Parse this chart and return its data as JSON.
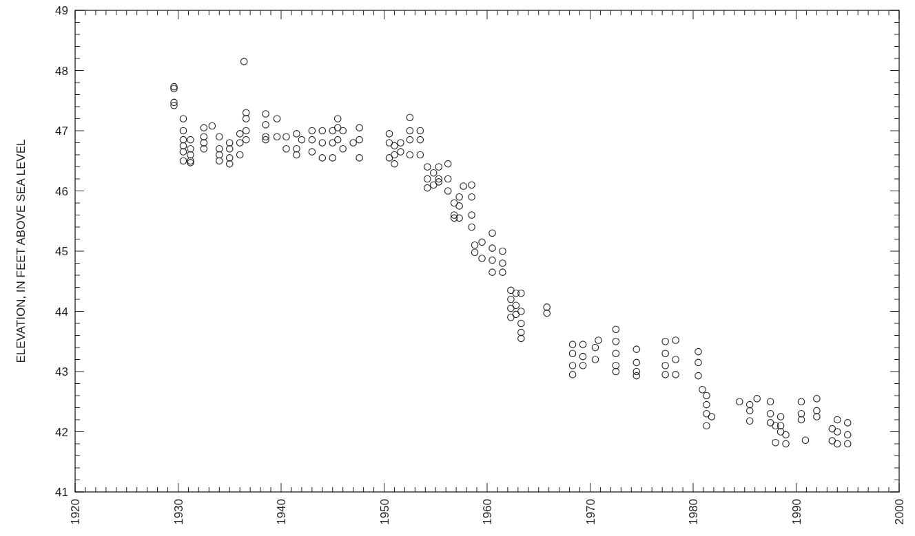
{
  "chart_data": {
    "type": "scatter",
    "ylabel": "ELEVATION, IN FEET ABOVE SEA LEVEL",
    "marker": "circle",
    "grid": false,
    "xlim": [
      1920,
      2000
    ],
    "ylim": [
      41,
      49
    ],
    "xticks": [
      1920,
      {
        "value": 1921,
        "label": null
      },
      {
        "value": 1922,
        "label": null
      },
      {
        "value": 1923,
        "label": null
      },
      {
        "value": 1924,
        "label": null
      },
      {
        "value": 1925,
        "label": null
      },
      {
        "value": 1926,
        "label": null
      },
      {
        "value": 1927,
        "label": null
      },
      {
        "value": 1928,
        "label": null
      },
      {
        "value": 1929,
        "label": null
      },
      1930,
      {
        "value": 1931,
        "label": null
      },
      {
        "value": 1932,
        "label": null
      },
      {
        "value": 1933,
        "label": null
      },
      {
        "value": 1934,
        "label": null
      },
      {
        "value": 1935,
        "label": null
      },
      {
        "value": 1936,
        "label": null
      },
      {
        "value": 1937,
        "label": null
      },
      {
        "value": 1938,
        "label": null
      },
      {
        "value": 1939,
        "label": null
      },
      1940,
      {
        "value": 1941,
        "label": null
      },
      {
        "value": 1942,
        "label": null
      },
      {
        "value": 1943,
        "label": null
      },
      {
        "value": 1944,
        "label": null
      },
      {
        "value": 1945,
        "label": null
      },
      {
        "value": 1946,
        "label": null
      },
      {
        "value": 1947,
        "label": null
      },
      {
        "value": 1948,
        "label": null
      },
      {
        "value": 1949,
        "label": null
      },
      1950,
      {
        "value": 1951,
        "label": null
      },
      {
        "value": 1952,
        "label": null
      },
      {
        "value": 1953,
        "label": null
      },
      {
        "value": 1954,
        "label": null
      },
      {
        "value": 1955,
        "label": null
      },
      {
        "value": 1956,
        "label": null
      },
      {
        "value": 1957,
        "label": null
      },
      {
        "value": 1958,
        "label": null
      },
      {
        "value": 1959,
        "label": null
      },
      1960,
      {
        "value": 1961,
        "label": null
      },
      {
        "value": 1962,
        "label": null
      },
      {
        "value": 1963,
        "label": null
      },
      {
        "value": 1964,
        "label": null
      },
      {
        "value": 1965,
        "label": null
      },
      {
        "value": 1966,
        "label": null
      },
      {
        "value": 1967,
        "label": null
      },
      {
        "value": 1968,
        "label": null
      },
      {
        "value": 1969,
        "label": null
      },
      1970,
      {
        "value": 1971,
        "label": null
      },
      {
        "value": 1972,
        "label": null
      },
      {
        "value": 1973,
        "label": null
      },
      {
        "value": 1974,
        "label": null
      },
      {
        "value": 1975,
        "label": null
      },
      {
        "value": 1976,
        "label": null
      },
      {
        "value": 1977,
        "label": null
      },
      {
        "value": 1978,
        "label": null
      },
      {
        "value": 1979,
        "label": null
      },
      1980,
      {
        "value": 1981,
        "label": null
      },
      {
        "value": 1982,
        "label": null
      },
      {
        "value": 1983,
        "label": null
      },
      {
        "value": 1984,
        "label": null
      },
      {
        "value": 1985,
        "label": null
      },
      {
        "value": 1986,
        "label": null
      },
      {
        "value": 1987,
        "label": null
      },
      {
        "value": 1988,
        "label": null
      },
      {
        "value": 1989,
        "label": null
      },
      1990,
      {
        "value": 1991,
        "label": null
      },
      {
        "value": 1992,
        "label": null
      },
      {
        "value": 1993,
        "label": null
      },
      {
        "value": 1994,
        "label": null
      },
      {
        "value": 1995,
        "label": null
      },
      {
        "value": 1996,
        "label": null
      },
      {
        "value": 1997,
        "label": null
      },
      {
        "value": 1998,
        "label": null
      },
      {
        "value": 1999,
        "label": null
      },
      2000
    ],
    "yticks": [
      41,
      {
        "value": 41.2,
        "label": null
      },
      {
        "value": 41.4,
        "label": null
      },
      {
        "value": 41.6,
        "label": null
      },
      {
        "value": 41.8,
        "label": null
      },
      42,
      {
        "value": 42.2,
        "label": null
      },
      {
        "value": 42.4,
        "label": null
      },
      {
        "value": 42.6,
        "label": null
      },
      {
        "value": 42.8,
        "label": null
      },
      43,
      {
        "value": 43.2,
        "label": null
      },
      {
        "value": 43.4,
        "label": null
      },
      {
        "value": 43.6,
        "label": null
      },
      {
        "value": 43.8,
        "label": null
      },
      44,
      {
        "value": 44.2,
        "label": null
      },
      {
        "value": 44.4,
        "label": null
      },
      {
        "value": 44.6,
        "label": null
      },
      {
        "value": 44.8,
        "label": null
      },
      45,
      {
        "value": 45.2,
        "label": null
      },
      {
        "value": 45.4,
        "label": null
      },
      {
        "value": 45.6,
        "label": null
      },
      {
        "value": 45.8,
        "label": null
      },
      46,
      {
        "value": 46.2,
        "label": null
      },
      {
        "value": 46.4,
        "label": null
      },
      {
        "value": 46.6,
        "label": null
      },
      {
        "value": 46.8,
        "label": null
      },
      47,
      {
        "value": 47.2,
        "label": null
      },
      {
        "value": 47.4,
        "label": null
      },
      {
        "value": 47.6,
        "label": null
      },
      {
        "value": 47.8,
        "label": null
      },
      48,
      {
        "value": 48.2,
        "label": null
      },
      {
        "value": 48.4,
        "label": null
      },
      {
        "value": 48.6,
        "label": null
      },
      {
        "value": 48.8,
        "label": null
      },
      49
    ],
    "series": [
      {
        "color": "#231f20",
        "x": [
          1929.6,
          1929.6,
          1929.6,
          1929.6,
          1930.5,
          1930.5,
          1930.5,
          1930.5,
          1930.5,
          1930.5,
          1931.2,
          1931.2,
          1931.2,
          1931.2,
          1931.2,
          1932.5,
          1932.5,
          1932.5,
          1932.5,
          1933.3,
          1934,
          1934,
          1934,
          1934,
          1935,
          1935,
          1935,
          1935,
          1936,
          1936,
          1936,
          1936.4,
          1936.6,
          1936.6,
          1936.6,
          1936.6,
          1938.5,
          1938.5,
          1938.5,
          1938.5,
          1939.6,
          1939.6,
          1940.5,
          1940.5,
          1941.5,
          1941.5,
          1941.5,
          1942,
          1943,
          1943,
          1943,
          1944,
          1944,
          1944,
          1945,
          1945,
          1945,
          1945.5,
          1945.5,
          1945.5,
          1946,
          1946,
          1947,
          1947.6,
          1947.6,
          1947.6,
          1950.5,
          1950.5,
          1950.5,
          1951,
          1951,
          1951,
          1951.6,
          1951.6,
          1952.5,
          1952.5,
          1952.5,
          1952.5,
          1953.5,
          1953.5,
          1953.5,
          1954.2,
          1954.2,
          1954.2,
          1954.8,
          1954.8,
          1955.3,
          1955.3,
          1955.3,
          1956.2,
          1956.2,
          1956.2,
          1956.8,
          1956.8,
          1956.8,
          1957.3,
          1957.3,
          1957.3,
          1957.7,
          1958.5,
          1958.5,
          1958.5,
          1958.5,
          1958.8,
          1958.8,
          1959.5,
          1959.5,
          1960.5,
          1960.5,
          1960.5,
          1960.5,
          1961.5,
          1961.5,
          1961.5,
          1962.3,
          1962.3,
          1962.3,
          1962.3,
          1962.8,
          1962.8,
          1962.8,
          1963.3,
          1963.3,
          1963.3,
          1963.3,
          1963.3,
          1965.8,
          1965.8,
          1968.3,
          1968.3,
          1968.3,
          1968.3,
          1969.3,
          1969.3,
          1969.3,
          1970.5,
          1970.5,
          1970.8,
          1972.5,
          1972.5,
          1972.5,
          1972.5,
          1972.5,
          1974.5,
          1974.5,
          1974.5,
          1974.5,
          1977.3,
          1977.3,
          1977.3,
          1977.3,
          1978.3,
          1978.3,
          1978.3,
          1980.5,
          1980.5,
          1980.5,
          1980.9,
          1981.3,
          1981.3,
          1981.3,
          1981.3,
          1981.8,
          1984.5,
          1985.5,
          1985.5,
          1985.5,
          1986.2,
          1987.5,
          1987.5,
          1987.5,
          1988,
          1988,
          1988.5,
          1988.5,
          1988.5,
          1989,
          1989,
          1990.5,
          1990.5,
          1990.5,
          1990.9,
          1992,
          1992,
          1992,
          1993.5,
          1993.5,
          1994,
          1994,
          1994,
          1995,
          1995,
          1995
        ],
        "values": [
          47.73,
          47.7,
          47.47,
          47.42,
          47.2,
          47.0,
          46.85,
          46.75,
          46.5,
          46.65,
          46.85,
          46.7,
          46.5,
          46.47,
          46.6,
          47.05,
          46.9,
          46.8,
          46.7,
          47.08,
          46.9,
          46.7,
          46.5,
          46.6,
          46.45,
          46.7,
          46.8,
          46.55,
          46.95,
          46.8,
          46.6,
          48.15,
          47.3,
          47.2,
          47.0,
          46.85,
          47.28,
          47.1,
          46.9,
          46.85,
          47.2,
          46.9,
          46.9,
          46.7,
          46.95,
          46.7,
          46.6,
          46.85,
          47.0,
          46.85,
          46.65,
          47.0,
          46.8,
          46.55,
          47.0,
          46.8,
          46.55,
          47.2,
          47.05,
          46.85,
          47.0,
          46.7,
          46.8,
          47.05,
          46.85,
          46.55,
          46.95,
          46.8,
          46.55,
          46.75,
          46.45,
          46.6,
          46.8,
          46.65,
          47.22,
          47.0,
          46.85,
          46.6,
          47.0,
          46.85,
          46.6,
          46.4,
          46.2,
          46.05,
          46.1,
          46.3,
          46.4,
          46.2,
          46.15,
          46.45,
          46.2,
          46.0,
          45.8,
          45.6,
          45.55,
          45.9,
          45.75,
          45.55,
          46.08,
          46.1,
          45.9,
          45.6,
          45.4,
          45.1,
          44.98,
          45.15,
          44.88,
          45.3,
          45.05,
          44.85,
          44.65,
          45.0,
          44.8,
          44.65,
          44.35,
          44.2,
          44.05,
          43.9,
          44.3,
          44.1,
          43.95,
          44.3,
          44.0,
          43.8,
          43.65,
          43.55,
          44.07,
          43.97,
          43.45,
          43.3,
          43.1,
          42.95,
          43.45,
          43.25,
          43.1,
          43.4,
          43.2,
          43.52,
          43.7,
          43.5,
          43.3,
          43.1,
          43.0,
          43.37,
          43.15,
          43.0,
          42.93,
          43.5,
          43.3,
          43.1,
          42.95,
          43.52,
          43.2,
          42.95,
          43.33,
          43.15,
          42.93,
          42.7,
          42.6,
          42.45,
          42.3,
          42.1,
          42.25,
          42.5,
          42.45,
          42.35,
          42.18,
          42.55,
          42.5,
          42.3,
          42.15,
          42.1,
          41.82,
          42.25,
          42.1,
          42.0,
          41.8,
          41.95,
          42.5,
          42.3,
          42.2,
          41.86,
          42.55,
          42.35,
          42.25,
          42.05,
          41.85,
          42.2,
          42.0,
          41.8,
          42.15,
          41.95,
          41.8
        ]
      }
    ]
  }
}
